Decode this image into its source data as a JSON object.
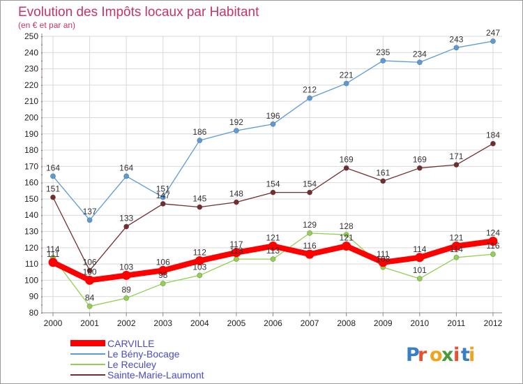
{
  "chart_data": {
    "type": "line",
    "title": "Evolution des Impôts locaux par Habitant",
    "subtitle": "(en € et par an)",
    "x": [
      "2000",
      "2001",
      "2002",
      "2003",
      "2004",
      "2005",
      "2006",
      "2007",
      "2008",
      "2009",
      "2010",
      "2011",
      "2012"
    ],
    "ylim": [
      80,
      250
    ],
    "yticks": [
      80,
      90,
      100,
      110,
      120,
      130,
      140,
      150,
      160,
      170,
      180,
      190,
      200,
      210,
      220,
      230,
      240,
      250
    ],
    "grid": true,
    "legend_placement": "bottom-left",
    "series": [
      {
        "name": "CARVILLE",
        "color": "#ff0000",
        "values": [
          111,
          100,
          103,
          106,
          112,
          117,
          121,
          116,
          121,
          111,
          114,
          121,
          124
        ]
      },
      {
        "name": "Le Bény-Bocage",
        "color": "#5b9bd5",
        "values": [
          164,
          137,
          164,
          151,
          186,
          192,
          196,
          212,
          221,
          235,
          234,
          243,
          247
        ]
      },
      {
        "name": "Le Reculey",
        "color": "#92d050",
        "values": [
          114,
          84,
          89,
          98,
          103,
          113,
          113,
          129,
          128,
          108,
          101,
          114,
          116
        ]
      },
      {
        "name": "Sainte-Marie-Laumont",
        "color": "#722e2e",
        "values": [
          151,
          106,
          133,
          147,
          145,
          148,
          154,
          154,
          169,
          161,
          169,
          171,
          184
        ]
      }
    ]
  },
  "watermark": {
    "text": "Proxiti"
  }
}
